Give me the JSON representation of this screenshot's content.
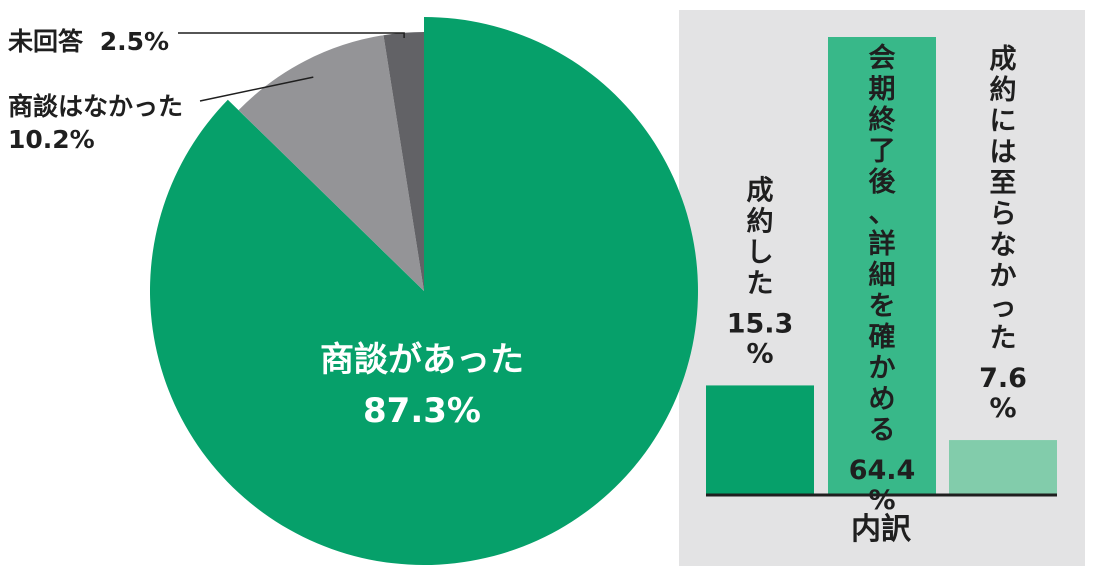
{
  "chart_data": [
    {
      "type": "pie",
      "slices": [
        {
          "label": "商談があった",
          "value": 87.3,
          "value_text": "87.3%",
          "color": "#06a06a"
        },
        {
          "label": "商談はなかった",
          "value": 10.2,
          "value_text": "10.2%",
          "color": "#949497"
        },
        {
          "label": "未回答",
          "value": 2.5,
          "value_text": "2.5%",
          "color": "#626266"
        }
      ]
    },
    {
      "type": "bar",
      "title": "内訳",
      "ylim": [
        0,
        64.4
      ],
      "categories": [
        "成約した",
        "会期終了後、詳細を確かめる",
        "成約には至らなかった"
      ],
      "values": [
        15.3,
        64.4,
        7.6
      ],
      "value_numbers": [
        "15.3",
        "64.4",
        "7.6"
      ],
      "unit": "%",
      "colors": [
        "#06a06a",
        "#38b889",
        "#82ccab"
      ]
    }
  ],
  "colors": {
    "panel_bg": "#e3e3e4",
    "baseline": "#1f1f1f",
    "leader_line": "#1f1f1f"
  }
}
